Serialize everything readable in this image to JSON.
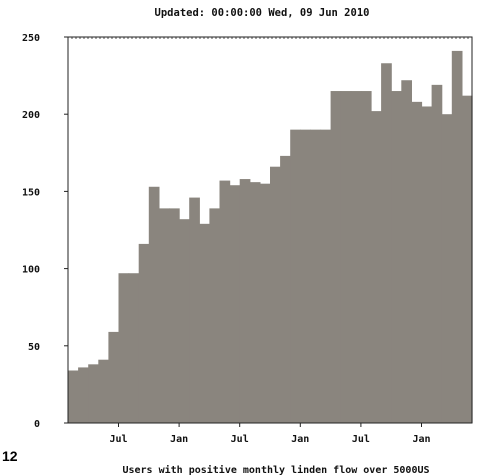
{
  "figure_label": "12",
  "chart_data": {
    "type": "bar",
    "title": "Updated: 00:00:00 Wed, 09 Jun 2010",
    "xlabel": "Users with positive monthly linden flow over 5000US",
    "ylabel": "",
    "ylim": [
      0,
      250
    ],
    "yticks": [
      0,
      50,
      100,
      150,
      200,
      250
    ],
    "xticks": [
      {
        "label": "Jul",
        "index": 5
      },
      {
        "label": "Jan",
        "index": 11
      },
      {
        "label": "Jul",
        "index": 17
      },
      {
        "label": "Jan",
        "index": 23
      },
      {
        "label": "Jul",
        "index": 29
      },
      {
        "label": "Jan",
        "index": 35
      }
    ],
    "bar_color": "#8a857e",
    "values": [
      34,
      36,
      38,
      41,
      59,
      97,
      97,
      116,
      153,
      139,
      139,
      132,
      146,
      129,
      139,
      157,
      154,
      158,
      156,
      155,
      166,
      173,
      190,
      190,
      190,
      190,
      215,
      215,
      215,
      215,
      202,
      233,
      215,
      222,
      208,
      205,
      219,
      200,
      241,
      212
    ]
  }
}
